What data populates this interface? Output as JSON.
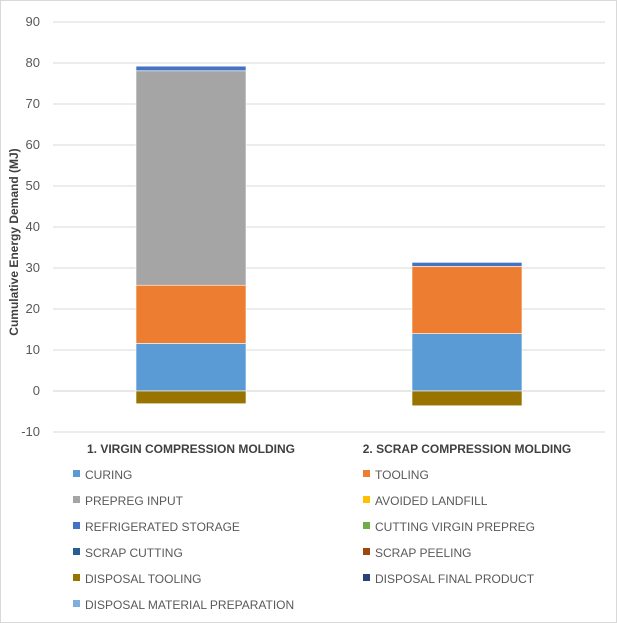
{
  "chart_data": {
    "type": "bar",
    "stacked": true,
    "xlabel": "",
    "ylabel": "Cumulative Energy Demand (MJ)",
    "ylim": [
      -10,
      90
    ],
    "yticks": [
      -10,
      0,
      10,
      20,
      30,
      40,
      50,
      60,
      70,
      80,
      90
    ],
    "grid": true,
    "legend_position": "bottom",
    "categories": [
      "1. VIRGIN COMPRESSION MOLDING",
      "2. SCRAP COMPRESSION MOLDING"
    ],
    "series": [
      {
        "name": "CURING",
        "color": "#5b9bd5",
        "values": [
          11.6,
          14.0
        ]
      },
      {
        "name": "TOOLING",
        "color": "#ed7d31",
        "values": [
          14.2,
          16.4
        ]
      },
      {
        "name": "PREPREG INPUT",
        "color": "#a5a5a5",
        "values": [
          52.3,
          0
        ]
      },
      {
        "name": "AVOIDED LANDFILL",
        "color": "#ffc000",
        "values": [
          0,
          0
        ]
      },
      {
        "name": "REFRIGERATED STORAGE",
        "color": "#4472c4",
        "values": [
          1.2,
          1.0
        ]
      },
      {
        "name": "CUTTING VIRGIN PREPREG",
        "color": "#70ad47",
        "values": [
          0.05,
          0
        ]
      },
      {
        "name": "SCRAP CUTTING",
        "color": "#255e91",
        "values": [
          0,
          0.1
        ]
      },
      {
        "name": "SCRAP PEELING",
        "color": "#9e480e",
        "values": [
          0,
          0.05
        ]
      },
      {
        "name": "DISPOSAL TOOLING",
        "color": "#997300",
        "values": [
          -3.1,
          -3.6
        ]
      },
      {
        "name": "DISPOSAL FINAL PRODUCT",
        "color": "#264478",
        "values": [
          0,
          0
        ]
      },
      {
        "name": "DISPOSAL MATERIAL PREPARATION",
        "color": "#7cafdd",
        "values": [
          0,
          0
        ]
      }
    ]
  }
}
